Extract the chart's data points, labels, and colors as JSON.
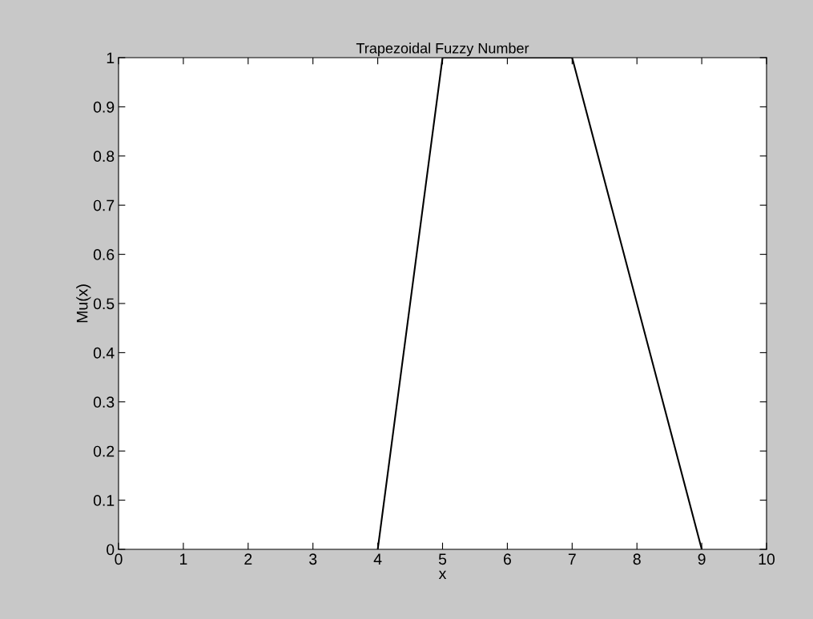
{
  "chart_data": {
    "type": "line",
    "title": "Trapezoidal Fuzzy Number",
    "xlabel": "x",
    "ylabel": "Mu(x)",
    "x": [
      4,
      5,
      7,
      9
    ],
    "series": [
      {
        "color": "#000000",
        "values": [
          0,
          1,
          1,
          0
        ]
      }
    ],
    "xlim": [
      0,
      10
    ],
    "ylim": [
      0,
      1
    ],
    "xticks": [
      0,
      1,
      2,
      3,
      4,
      5,
      6,
      7,
      8,
      9,
      10
    ],
    "yticks": [
      0,
      0.1,
      0.2,
      0.3,
      0.4,
      0.5,
      0.6,
      0.7,
      0.8,
      0.9,
      1
    ],
    "grid": false,
    "legend": false,
    "marker": "none",
    "line_style": "solid"
  }
}
